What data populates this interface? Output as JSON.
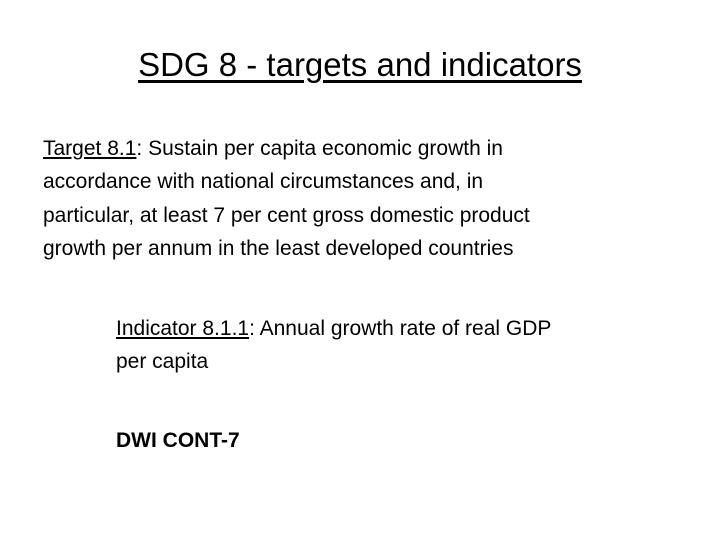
{
  "title": "SDG 8 - targets and indicators",
  "target": {
    "label": "Target 8.1",
    "lines": [
      ":  Sustain per capita economic growth in",
      "accordance with national circumstances and, in",
      "particular, at least 7 per cent gross domestic product",
      "growth per annum in the least developed countries"
    ]
  },
  "indicator": {
    "label": "Indicator 8.1.1",
    "lines": [
      ":  Annual growth rate of real GDP",
      "per capita"
    ]
  },
  "note": "DWI CONT-7"
}
